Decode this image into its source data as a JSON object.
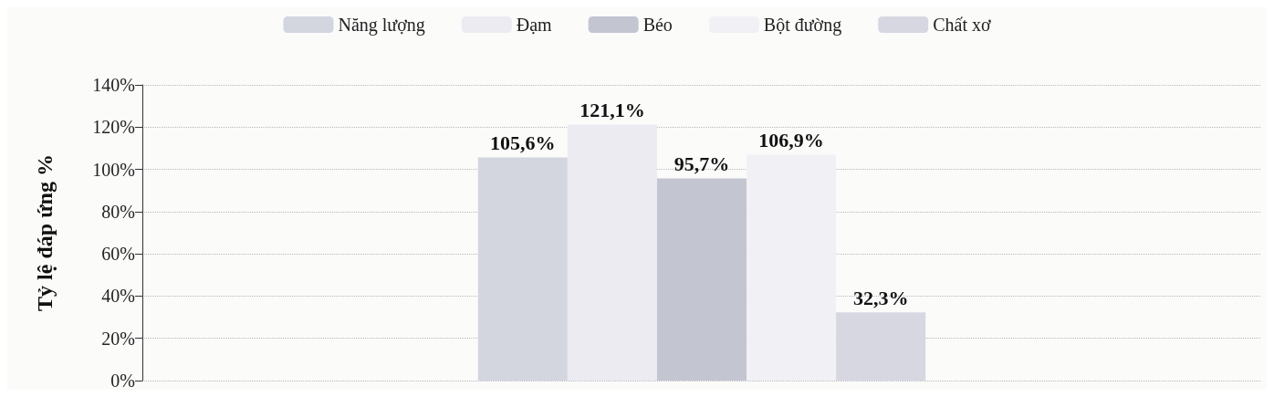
{
  "chart_data": {
    "type": "bar",
    "ylabel": "Tỷ lệ đáp ứng %",
    "categories": [
      null
    ],
    "series": [
      {
        "name": "Năng lượng",
        "color": "#d3d5df",
        "values": [
          105.6
        ],
        "value_labels": [
          "105,6%"
        ]
      },
      {
        "name": "Đạm",
        "color": "#ebebf1",
        "values": [
          121.1
        ],
        "value_labels": [
          "121,1%"
        ]
      },
      {
        "name": "Béo",
        "color": "#c3c5d1",
        "values": [
          95.7
        ],
        "value_labels": [
          "95,7%"
        ]
      },
      {
        "name": "Bột đường",
        "color": "#f1f1f5",
        "values": [
          106.9
        ],
        "value_labels": [
          "106,9%"
        ]
      },
      {
        "name": "Chất xơ",
        "color": "#d7d7e1",
        "values": [
          32.3
        ],
        "value_labels": [
          "32,3%"
        ]
      }
    ],
    "ylim": [
      0,
      140
    ],
    "yticks": [
      {
        "value": 0,
        "label": "0%"
      },
      {
        "value": 20,
        "label": "20%"
      },
      {
        "value": 40,
        "label": "40%"
      },
      {
        "value": 60,
        "label": "60%"
      },
      {
        "value": 80,
        "label": "80%"
      },
      {
        "value": 100,
        "label": "100%"
      },
      {
        "value": 120,
        "label": "120%"
      },
      {
        "value": 140,
        "label": "140%"
      }
    ],
    "grid": "y",
    "legend": "top"
  }
}
